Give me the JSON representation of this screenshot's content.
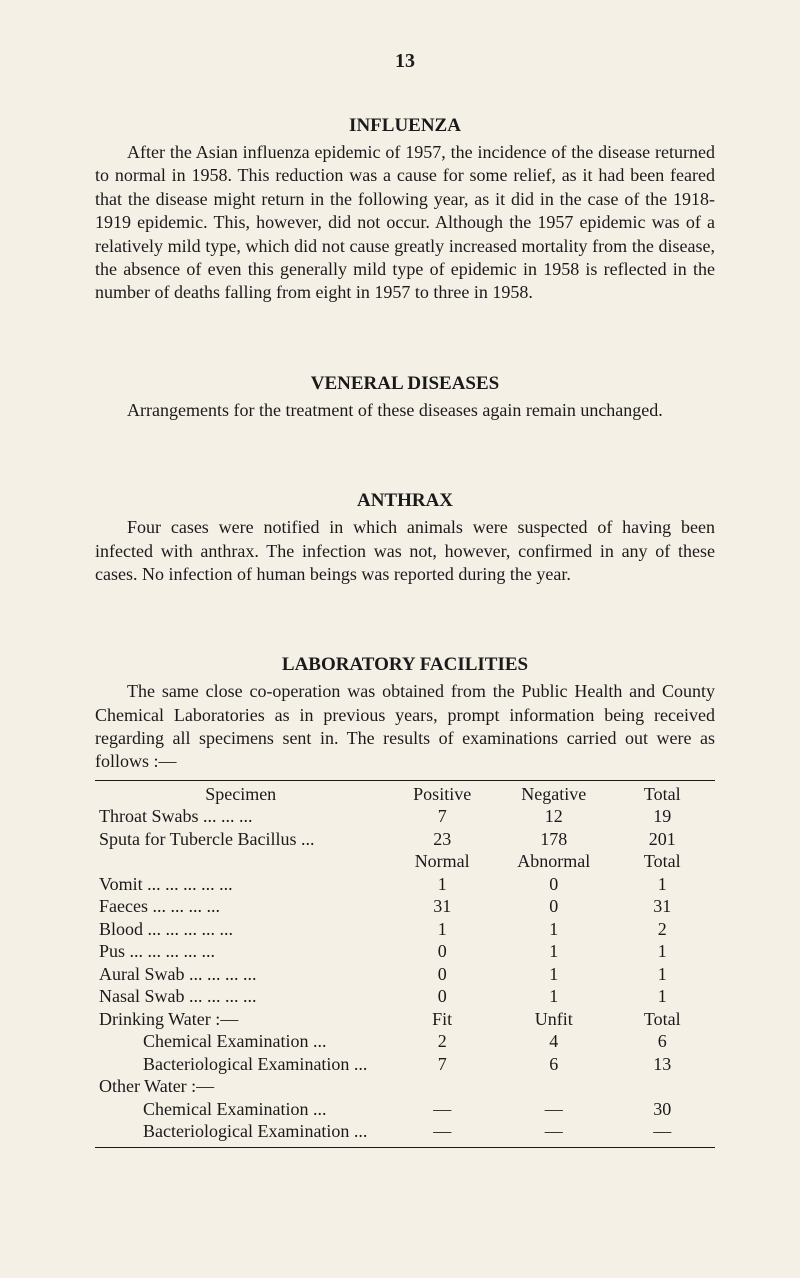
{
  "page_number": "13",
  "influenza": {
    "title": "INFLUENZA",
    "body": "After the Asian influenza epidemic of 1957, the incidence of the disease returned to normal in 1958. This reduction was a cause for some relief, as it had been feared that the disease might return in the following year, as it did in the case of the 1918-1919 epidemic. This, however, did not occur. Although the 1957 epidemic was of a relatively mild type, which did not cause greatly increased mortality from the disease, the absence of even this generally mild type of epidemic in 1958 is reflected in the number of deaths falling from eight in 1957 to three in 1958."
  },
  "veneral": {
    "title": "VENERAL DISEASES",
    "body": "Arrangements for the treatment of these diseases again remain unchanged."
  },
  "anthrax": {
    "title": "ANTHRAX",
    "body": "Four cases were notified in which animals were suspected of having been infected with anthrax. The infection was not, however, confirmed in any of these cases. No infection of human beings was reported during the year."
  },
  "lab": {
    "title": "LABORATORY FACILITIES",
    "body": "The same close co-operation was obtained from the Public Health and County Chemical Laboratories as in previous years, prompt information being received regarding all specimens sent in. The results of examinations carried out were as follows :—"
  },
  "table": {
    "section1": {
      "h_specimen": "Specimen",
      "h_positive": "Positive",
      "h_negative": "Negative",
      "h_total": "Total",
      "rows": [
        {
          "label": "Throat Swabs        ...    ...    ...",
          "c1": "7",
          "c2": "12",
          "c3": "19"
        },
        {
          "label": "Sputa for Tubercle Bacillus      ...",
          "c1": "23",
          "c2": "178",
          "c3": "201"
        }
      ]
    },
    "section2": {
      "h_normal": "Normal",
      "h_abnormal": "Abnormal",
      "h_total": "Total",
      "rows": [
        {
          "label": "Vomit         ...    ...    ...    ...    ...",
          "c1": "1",
          "c2": "0",
          "c3": "1"
        },
        {
          "label": "Faeces        ...    ...    ...    ...",
          "c1": "31",
          "c2": "0",
          "c3": "31"
        },
        {
          "label": "Blood ...    ...    ...    ...    ...",
          "c1": "1",
          "c2": "1",
          "c3": "2"
        },
        {
          "label": "Pus    ...    ...    ...    ...    ...",
          "c1": "0",
          "c2": "1",
          "c3": "1"
        },
        {
          "label": "Aural Swab ...    ...    ...    ...",
          "c1": "0",
          "c2": "1",
          "c3": "1"
        },
        {
          "label": "Nasal Swab ...    ...    ...    ...",
          "c1": "0",
          "c2": "1",
          "c3": "1"
        }
      ]
    },
    "section3": {
      "h_group": "Drinking Water :—",
      "h_fit": "Fit",
      "h_unfit": "Unfit",
      "h_total": "Total",
      "rows": [
        {
          "label": "Chemical Examination      ...",
          "c1": "2",
          "c2": "4",
          "c3": "6"
        },
        {
          "label": "Bacteriological Examination ...",
          "c1": "7",
          "c2": "6",
          "c3": "13"
        }
      ]
    },
    "section4": {
      "h_group": "Other Water :—",
      "rows": [
        {
          "label": "Chemical Examination      ...",
          "c1": "—",
          "c2": "—",
          "c3": "30"
        },
        {
          "label": "Bacteriological Examination ...",
          "c1": "—",
          "c2": "—",
          "c3": "—"
        }
      ]
    }
  }
}
